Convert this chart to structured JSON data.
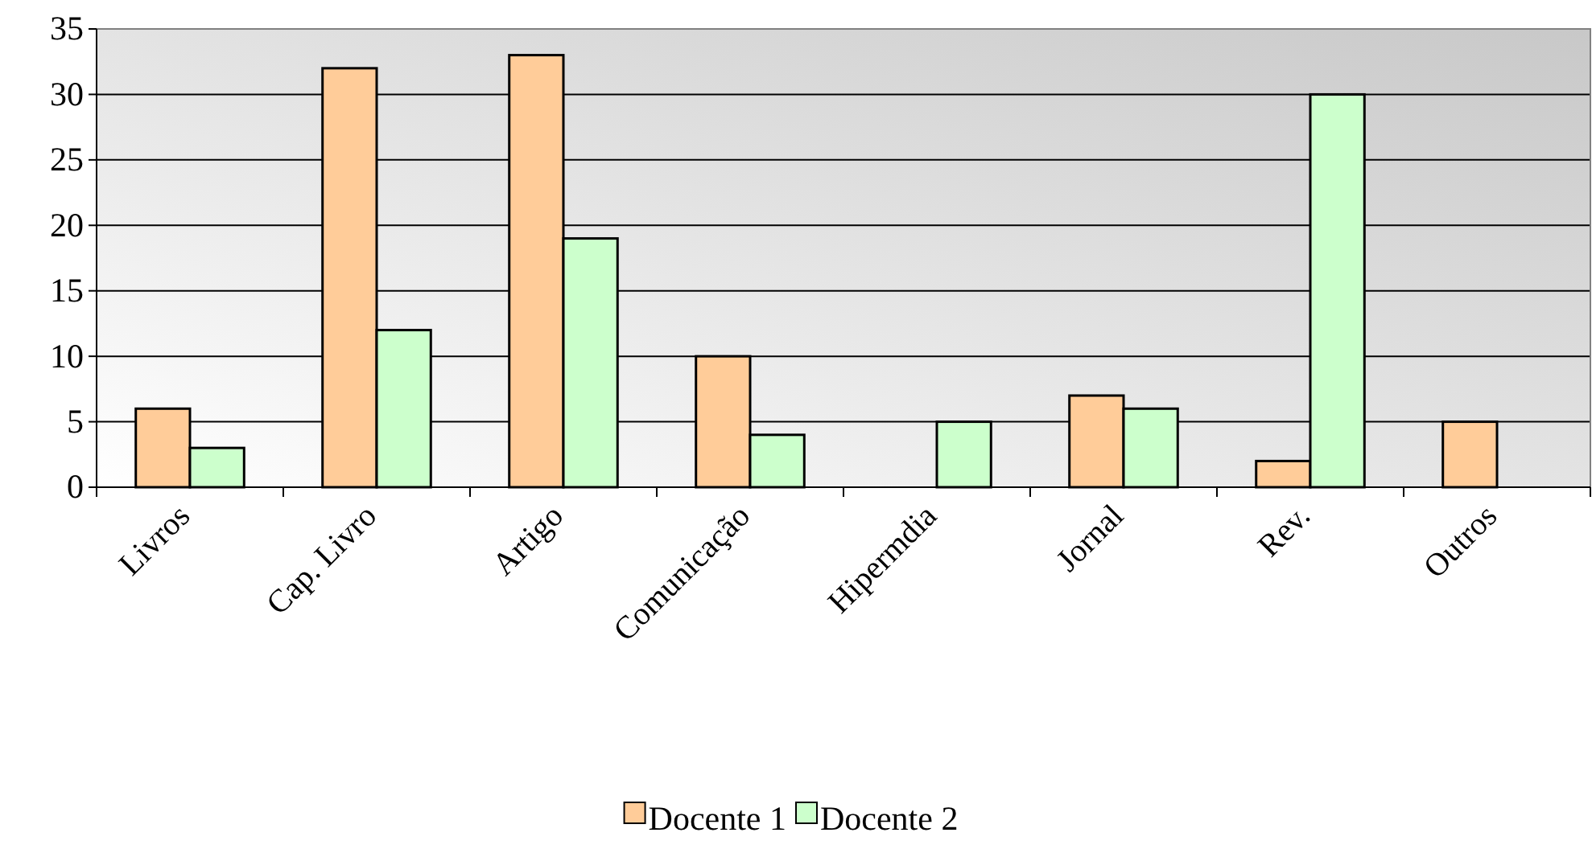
{
  "chart_data": {
    "type": "bar",
    "categories": [
      "Livros",
      "Cap. Livro",
      "Artigo",
      "Comunicação",
      "Hipermdia",
      "Jornal",
      "Rev.",
      "Outros"
    ],
    "series": [
      {
        "name": "Docente 1",
        "color": "#ffcc99",
        "values": [
          6,
          32,
          33,
          10,
          0,
          7,
          2,
          5
        ]
      },
      {
        "name": "Docente 2",
        "color": "#ccffcc",
        "values": [
          3,
          12,
          19,
          4,
          5,
          6,
          30,
          0
        ]
      }
    ],
    "ylim": [
      0,
      35
    ],
    "yticks": [
      0,
      5,
      10,
      15,
      20,
      25,
      30,
      35
    ],
    "grid": "y",
    "legend": "bottom"
  }
}
